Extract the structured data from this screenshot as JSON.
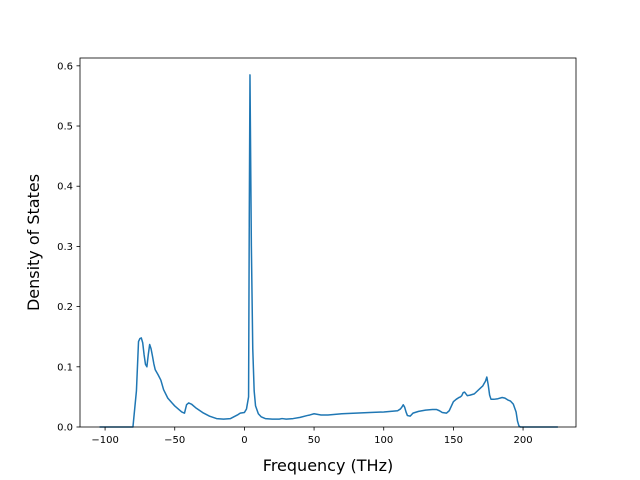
{
  "chart_data": {
    "type": "line",
    "title": "",
    "xlabel": "Frequency (THz)",
    "ylabel": "Density of States",
    "xlim": [
      -118,
      238
    ],
    "ylim": [
      0.0,
      0.613
    ],
    "xticks": [
      -100,
      -50,
      0,
      50,
      100,
      150,
      200
    ],
    "xtick_labels": [
      "−100",
      "−50",
      "0",
      "50",
      "100",
      "150",
      "200"
    ],
    "yticks": [
      0.0,
      0.1,
      0.2,
      0.3,
      0.4,
      0.5,
      0.6
    ],
    "ytick_labels": [
      "0.0",
      "0.1",
      "0.2",
      "0.3",
      "0.4",
      "0.5",
      "0.6"
    ],
    "grid": false,
    "legend": "none",
    "line_color": "#1f77b4",
    "series": [
      {
        "x": [
          -104,
          -80,
          -77.5,
          -76,
          -75,
          -74,
          -73,
          -72,
          -71,
          -70,
          -69,
          -68,
          -67,
          -66,
          -65,
          -64,
          -62,
          -60,
          -58,
          -55,
          -52,
          -50,
          -47,
          -45,
          -44,
          -43,
          -41.5,
          -40,
          -38,
          -35,
          -30,
          -25,
          -20,
          -15,
          -10,
          -5,
          -3,
          0,
          1.5,
          3,
          3.5,
          4,
          5,
          6,
          7,
          8,
          10,
          12,
          15,
          20,
          25,
          27,
          30,
          35,
          40,
          45,
          47,
          50,
          55,
          60,
          70,
          80,
          90,
          100,
          105,
          110,
          112,
          113,
          114,
          115,
          116,
          117,
          119,
          121,
          125,
          130,
          135,
          138,
          140,
          142,
          145,
          147,
          150,
          152,
          154,
          155,
          156,
          157,
          158,
          160,
          162,
          165,
          170,
          171,
          172,
          173,
          174,
          175,
          176,
          177,
          179,
          182,
          185,
          187,
          189,
          191,
          193,
          195,
          196,
          197,
          198,
          200,
          225
        ],
        "y": [
          0.0,
          0.0,
          0.06,
          0.142,
          0.147,
          0.148,
          0.14,
          0.12,
          0.104,
          0.1,
          0.12,
          0.137,
          0.13,
          0.118,
          0.105,
          0.095,
          0.087,
          0.078,
          0.062,
          0.048,
          0.04,
          0.035,
          0.029,
          0.025,
          0.024,
          0.023,
          0.037,
          0.04,
          0.038,
          0.032,
          0.024,
          0.018,
          0.014,
          0.013,
          0.014,
          0.02,
          0.023,
          0.024,
          0.03,
          0.05,
          0.35,
          0.585,
          0.3,
          0.13,
          0.06,
          0.035,
          0.022,
          0.017,
          0.014,
          0.013,
          0.013,
          0.014,
          0.013,
          0.014,
          0.016,
          0.019,
          0.02,
          0.022,
          0.02,
          0.02,
          0.022,
          0.023,
          0.024,
          0.025,
          0.026,
          0.027,
          0.03,
          0.033,
          0.037,
          0.033,
          0.025,
          0.019,
          0.018,
          0.023,
          0.026,
          0.028,
          0.029,
          0.029,
          0.027,
          0.024,
          0.023,
          0.027,
          0.042,
          0.046,
          0.049,
          0.05,
          0.052,
          0.057,
          0.058,
          0.052,
          0.053,
          0.055,
          0.066,
          0.068,
          0.072,
          0.076,
          0.083,
          0.07,
          0.053,
          0.046,
          0.046,
          0.047,
          0.049,
          0.048,
          0.045,
          0.043,
          0.038,
          0.025,
          0.01,
          0.002,
          0.0,
          0.0,
          0.0
        ]
      }
    ]
  }
}
